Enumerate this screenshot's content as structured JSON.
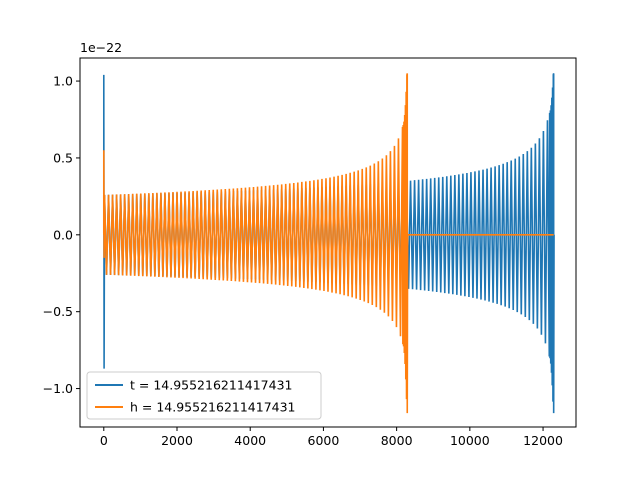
{
  "chart_data": {
    "type": "line",
    "title": "",
    "xlabel": "",
    "ylabel": "",
    "y_offset_label": "1e−22",
    "xlim": [
      -650,
      12900
    ],
    "ylim": [
      -1.25,
      1.15
    ],
    "x_ticks": [
      0,
      2000,
      4000,
      6000,
      8000,
      10000,
      12000
    ],
    "x_tick_labels": [
      "0",
      "2000",
      "4000",
      "6000",
      "8000",
      "10000",
      "12000"
    ],
    "y_ticks": [
      1.0,
      0.5,
      0.0,
      -0.5,
      -1.0
    ],
    "y_tick_labels": [
      "1.0",
      "0.5",
      "0.0",
      "−0.5",
      "−1.0"
    ],
    "grid": false,
    "legend_position": "lower-left",
    "series": [
      {
        "name": "t = 14.955216211417431",
        "color": "#1f77b4",
        "description": "oscillating chirp waveform",
        "x_start": 0,
        "x_end": 12290,
        "start_spike": [
          -0.87,
          1.04
        ],
        "envelope_start": 0.26,
        "envelope_peak": [
          -1.16,
          1.05
        ]
      },
      {
        "name": "h = 14.955216211417431",
        "color": "#ff7f0e",
        "description": "oscillating chirp waveform, zero after merger",
        "x_start": 0,
        "x_end": 8290,
        "flat_until": 12290,
        "start_spike": [
          -0.15,
          0.55
        ],
        "envelope_start": 0.26,
        "envelope_peak": [
          -1.16,
          1.05
        ]
      }
    ]
  }
}
